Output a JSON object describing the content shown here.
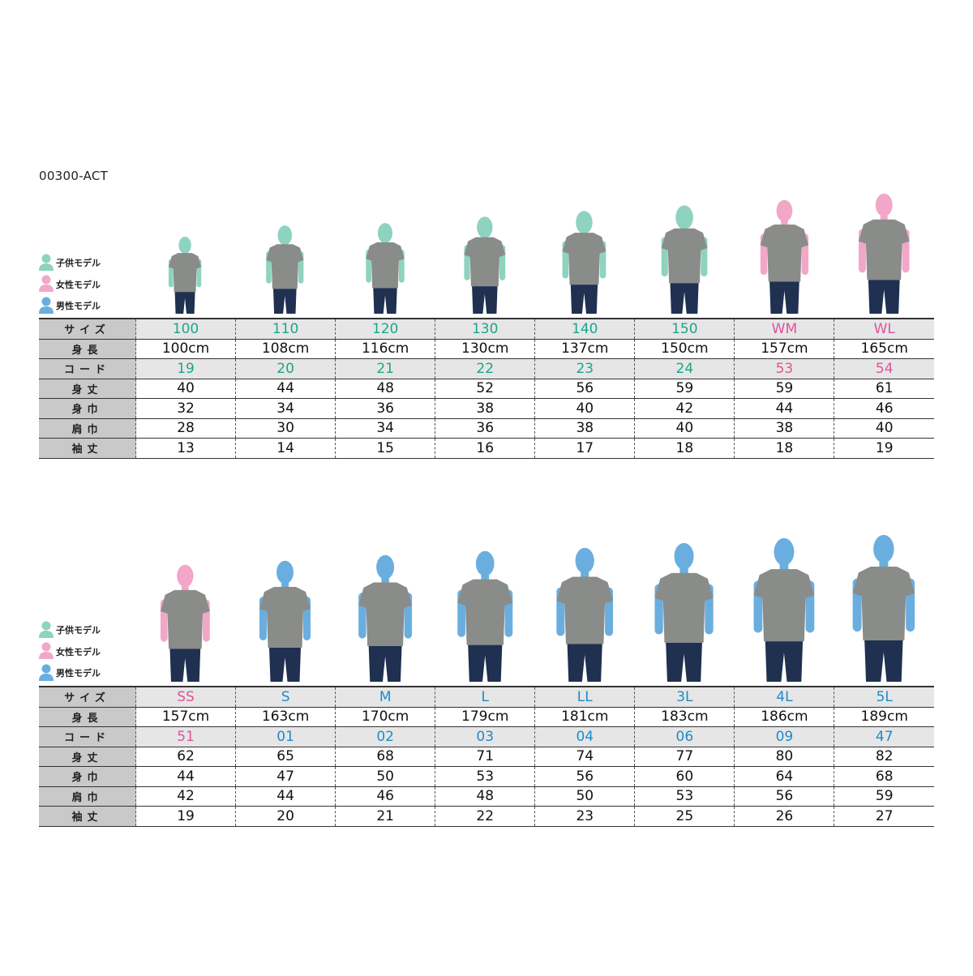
{
  "title": "00300-ACT",
  "legend": [
    {
      "label": "子供モデル",
      "type": "child"
    },
    {
      "label": "女性モデル",
      "type": "female"
    },
    {
      "label": "男性モデル",
      "type": "male"
    }
  ],
  "colors": {
    "child": "#8ed3bf",
    "female": "#f2a7c8",
    "male": "#6aaee0",
    "child_text": "#1aa68a",
    "female_text": "#e0529c",
    "male_text": "#1e8bc8",
    "shirt": "#8a8c8a",
    "pants": "#1f3050"
  },
  "row_labels": [
    "サイズ",
    "身長",
    "コード",
    "身丈",
    "身巾",
    "肩巾",
    "袖丈"
  ],
  "tables": [
    {
      "columns": [
        {
          "size": "100",
          "height": "100cm",
          "code": "19",
          "model": "child",
          "values": [
            "40",
            "32",
            "28",
            "13"
          ]
        },
        {
          "size": "110",
          "height": "108cm",
          "code": "20",
          "model": "child",
          "values": [
            "44",
            "34",
            "30",
            "14"
          ]
        },
        {
          "size": "120",
          "height": "116cm",
          "code": "21",
          "model": "child",
          "values": [
            "48",
            "36",
            "34",
            "15"
          ]
        },
        {
          "size": "130",
          "height": "130cm",
          "code": "22",
          "model": "child",
          "values": [
            "52",
            "38",
            "36",
            "16"
          ]
        },
        {
          "size": "140",
          "height": "137cm",
          "code": "23",
          "model": "child",
          "values": [
            "56",
            "40",
            "38",
            "17"
          ]
        },
        {
          "size": "150",
          "height": "150cm",
          "code": "24",
          "model": "child",
          "values": [
            "59",
            "42",
            "40",
            "18"
          ]
        },
        {
          "size": "WM",
          "height": "157cm",
          "code": "53",
          "model": "female",
          "values": [
            "59",
            "44",
            "38",
            "18"
          ]
        },
        {
          "size": "WL",
          "height": "165cm",
          "code": "54",
          "model": "female",
          "values": [
            "61",
            "46",
            "40",
            "19"
          ]
        }
      ]
    },
    {
      "columns": [
        {
          "size": "SS",
          "height": "157cm",
          "code": "51",
          "model": "female",
          "values": [
            "62",
            "44",
            "42",
            "19"
          ]
        },
        {
          "size": "S",
          "height": "163cm",
          "code": "01",
          "model": "male",
          "values": [
            "65",
            "47",
            "44",
            "20"
          ]
        },
        {
          "size": "M",
          "height": "170cm",
          "code": "02",
          "model": "male",
          "values": [
            "68",
            "50",
            "46",
            "21"
          ]
        },
        {
          "size": "L",
          "height": "179cm",
          "code": "03",
          "model": "male",
          "values": [
            "71",
            "53",
            "48",
            "22"
          ]
        },
        {
          "size": "LL",
          "height": "181cm",
          "code": "04",
          "model": "male",
          "values": [
            "74",
            "56",
            "50",
            "23"
          ]
        },
        {
          "size": "3L",
          "height": "183cm",
          "code": "06",
          "model": "male",
          "values": [
            "77",
            "60",
            "53",
            "25"
          ]
        },
        {
          "size": "4L",
          "height": "186cm",
          "code": "09",
          "model": "male",
          "values": [
            "80",
            "64",
            "56",
            "26"
          ]
        },
        {
          "size": "5L",
          "height": "189cm",
          "code": "47",
          "model": "male",
          "values": [
            "82",
            "68",
            "59",
            "27"
          ]
        }
      ]
    }
  ]
}
